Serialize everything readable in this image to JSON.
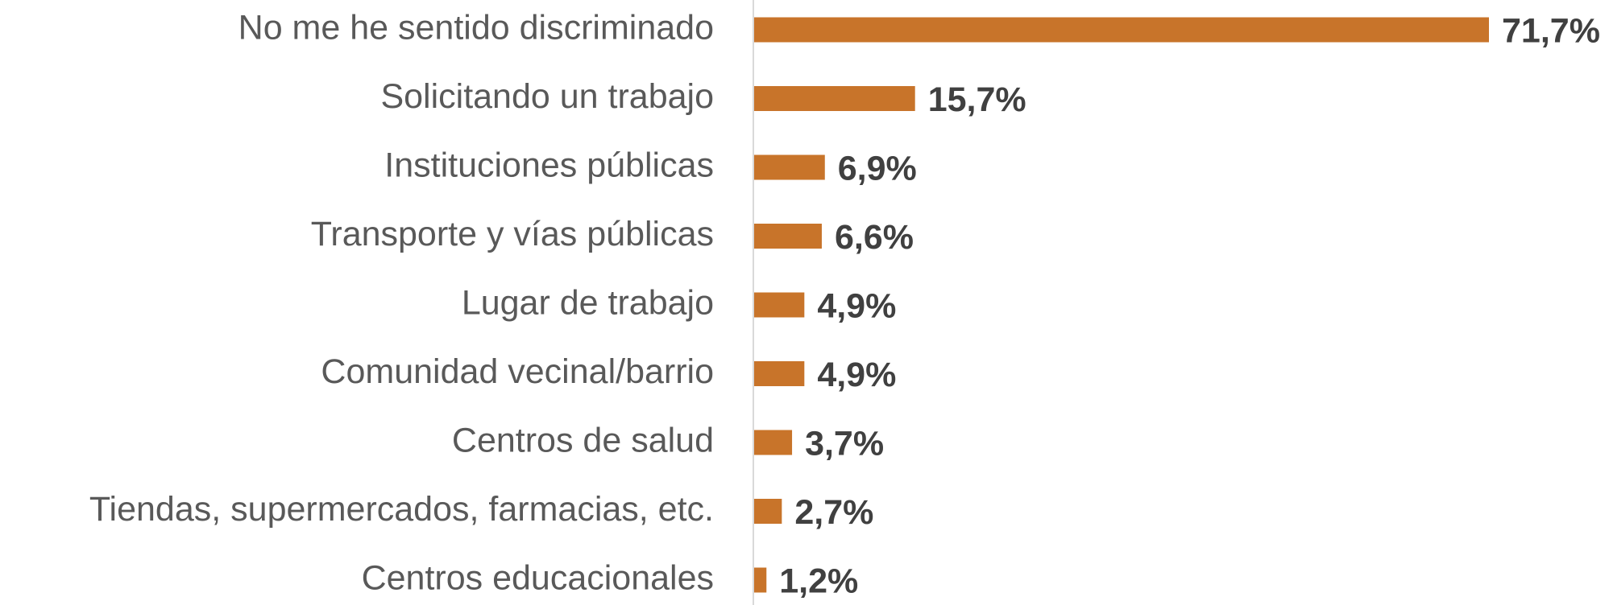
{
  "chart_data": {
    "type": "bar",
    "orientation": "horizontal",
    "categories": [
      "No me he sentido discriminado",
      "Solicitando un trabajo",
      "Instituciones públicas",
      "Transporte y vías públicas",
      "Lugar de trabajo",
      "Comunidad vecinal/barrio",
      "Centros de salud",
      "Tiendas, supermercados, farmacias, etc.",
      "Centros educacionales"
    ],
    "values": [
      71.7,
      15.7,
      6.9,
      6.6,
      4.9,
      4.9,
      3.7,
      2.7,
      1.2
    ],
    "value_labels": [
      "71,7%",
      "15,7%",
      "6,9%",
      "6,6%",
      "4,9%",
      "4,9%",
      "3,7%",
      "2,7%",
      "1,2%"
    ],
    "color": "#c8742a",
    "grid": false
  }
}
